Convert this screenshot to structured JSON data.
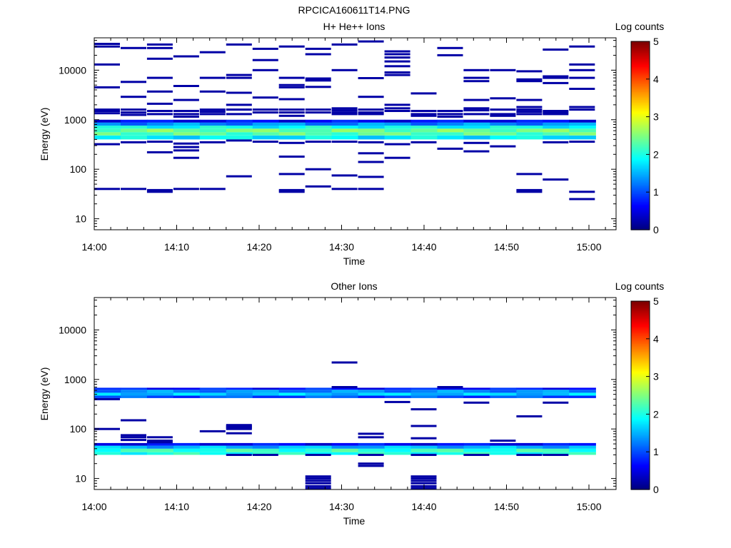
{
  "figure": {
    "title": "RPCICA160611T14.PNG"
  },
  "colorbar": {
    "label": "Log counts",
    "ticks": [
      "0",
      "1",
      "2",
      "3",
      "4",
      "5"
    ],
    "range": [
      0,
      5
    ],
    "colormap": "jet"
  },
  "chart_data": [
    {
      "type": "heatmap",
      "title": "H+ He++ Ions",
      "xlabel": "Time",
      "ylabel": "Energy (eV)",
      "x_tick_labels": [
        "14:00",
        "14:10",
        "14:20",
        "14:30",
        "14:40",
        "14:50",
        "15:00"
      ],
      "y_tick_labels": [
        "10",
        "100",
        "1000",
        "10000"
      ],
      "y_scale": "log",
      "y_range_eV": [
        6,
        45000
      ],
      "x_range": [
        "14:00",
        "15:03"
      ],
      "time_bin_minutes": 3.2,
      "colorbar_label": "Log counts",
      "bands": [
        {
          "e_low": 400,
          "e_high": 480,
          "value": 1.8
        },
        {
          "e_low": 480,
          "e_high": 560,
          "value": 2.3
        },
        {
          "e_low": 560,
          "e_high": 660,
          "value": 2.4
        },
        {
          "e_low": 660,
          "e_high": 760,
          "value": 1.9
        },
        {
          "e_low": 760,
          "e_high": 880,
          "value": 1.3
        },
        {
          "e_low": 880,
          "e_high": 1000,
          "value": 0.6
        }
      ],
      "lines": [
        {
          "t": 0,
          "e": [
            34000,
            30000,
            13000,
            4500,
            1600,
            1500,
            1350,
            320,
            40
          ]
        },
        {
          "t": 1,
          "e": [
            28000,
            5800,
            2900,
            1600,
            1400,
            1250,
            350,
            40
          ]
        },
        {
          "t": 2,
          "e": [
            33000,
            28000,
            17000,
            7000,
            3700,
            2100,
            1500,
            1300,
            360,
            220,
            38,
            35
          ]
        },
        {
          "t": 3,
          "e": [
            19000,
            4800,
            2500,
            1500,
            1300,
            1150,
            330,
            280,
            240,
            170,
            40
          ]
        },
        {
          "t": 4,
          "e": [
            23000,
            7000,
            3700,
            1600,
            1450,
            1300,
            350,
            40
          ]
        },
        {
          "t": 5,
          "e": [
            33000,
            8000,
            7000,
            3500,
            2000,
            1600,
            1300,
            380,
            72
          ]
        },
        {
          "t": 6,
          "e": [
            27000,
            16000,
            10000,
            2800,
            1600,
            1400,
            360
          ]
        },
        {
          "t": 7,
          "e": [
            30000,
            7000,
            5000,
            4500,
            2600,
            1600,
            1400,
            1200,
            340,
            180,
            80,
            38,
            35
          ]
        },
        {
          "t": 8,
          "e": [
            27000,
            21000,
            6800,
            6200,
            4600,
            1600,
            1400,
            360,
            100,
            45
          ]
        },
        {
          "t": 9,
          "e": [
            33000,
            10000,
            1700,
            1550,
            1400,
            1300,
            360,
            75,
            40
          ]
        },
        {
          "t": 10,
          "e": [
            38000,
            6900,
            2900,
            1600,
            1400,
            1300,
            350,
            210,
            140,
            70,
            40
          ]
        },
        {
          "t": 11,
          "e": [
            24000,
            21000,
            18000,
            15000,
            12000,
            9000,
            8000,
            2000,
            1700,
            1500,
            320,
            170
          ]
        },
        {
          "t": 12,
          "e": [
            3400,
            1500,
            1300,
            1200,
            350
          ]
        },
        {
          "t": 13,
          "e": [
            28000,
            20000,
            1500,
            1300,
            1150,
            260
          ]
        },
        {
          "t": 14,
          "e": [
            10000,
            7000,
            6000,
            2500,
            1700,
            1550,
            1300,
            340,
            230
          ]
        },
        {
          "t": 15,
          "e": [
            10000,
            2700,
            1600,
            1300,
            1200,
            290
          ]
        },
        {
          "t": 16,
          "e": [
            9500,
            6500,
            6000,
            2500,
            1800,
            1600,
            1450,
            1300,
            80,
            38,
            35
          ]
        },
        {
          "t": 17,
          "e": [
            26000,
            7500,
            7000,
            5500,
            1500,
            1400,
            1300,
            350,
            62
          ]
        },
        {
          "t": 18,
          "e": [
            30000,
            13000,
            10000,
            7000,
            4200,
            1800,
            1600,
            360,
            35,
            25
          ]
        }
      ]
    },
    {
      "type": "heatmap",
      "title": "Other Ions",
      "xlabel": "Time",
      "ylabel": "Energy (eV)",
      "x_tick_labels": [
        "14:00",
        "14:10",
        "14:20",
        "14:30",
        "14:40",
        "14:50",
        "15:00"
      ],
      "y_tick_labels": [
        "10",
        "100",
        "1000",
        "10000"
      ],
      "y_scale": "log",
      "y_range_eV": [
        6,
        45000
      ],
      "x_range": [
        "14:00",
        "15:03"
      ],
      "time_bin_minutes": 3.2,
      "colorbar_label": "Log counts",
      "bands": [
        {
          "e_low": 420,
          "e_high": 470,
          "value": 1.0
        },
        {
          "e_low": 470,
          "e_high": 540,
          "value": 1.6
        },
        {
          "e_low": 540,
          "e_high": 620,
          "value": 1.3
        },
        {
          "e_low": 620,
          "e_high": 680,
          "value": 0.7
        },
        {
          "e_low": 30,
          "e_high": 34,
          "value": 2.0
        },
        {
          "e_low": 34,
          "e_high": 40,
          "value": 2.1
        },
        {
          "e_low": 40,
          "e_high": 46,
          "value": 1.5
        },
        {
          "e_low": 46,
          "e_high": 52,
          "value": 0.6
        }
      ],
      "lines": [
        {
          "t": 0,
          "e": [
            400,
            100
          ]
        },
        {
          "t": 1,
          "e": [
            150,
            75,
            68,
            60
          ]
        },
        {
          "t": 2,
          "e": [
            68,
            58,
            54
          ]
        },
        {
          "t": 4,
          "e": [
            90
          ]
        },
        {
          "t": 5,
          "e": [
            120,
            115,
            110,
            105,
            100,
            82,
            30
          ]
        },
        {
          "t": 6,
          "e": [
            30
          ]
        },
        {
          "t": 8,
          "e": [
            30,
            11,
            10,
            9,
            8,
            7,
            6.3
          ]
        },
        {
          "t": 9,
          "e": [
            2200,
            700
          ]
        },
        {
          "t": 10,
          "e": [
            80,
            68,
            30,
            20,
            18
          ]
        },
        {
          "t": 11,
          "e": [
            350
          ]
        },
        {
          "t": 12,
          "e": [
            250,
            115,
            65,
            30,
            11,
            10,
            9,
            8,
            7,
            6.3
          ]
        },
        {
          "t": 13,
          "e": [
            700
          ]
        },
        {
          "t": 14,
          "e": [
            340,
            30
          ]
        },
        {
          "t": 15,
          "e": [
            58
          ]
        },
        {
          "t": 16,
          "e": [
            180,
            30
          ]
        },
        {
          "t": 17,
          "e": [
            340,
            30
          ]
        }
      ]
    }
  ]
}
